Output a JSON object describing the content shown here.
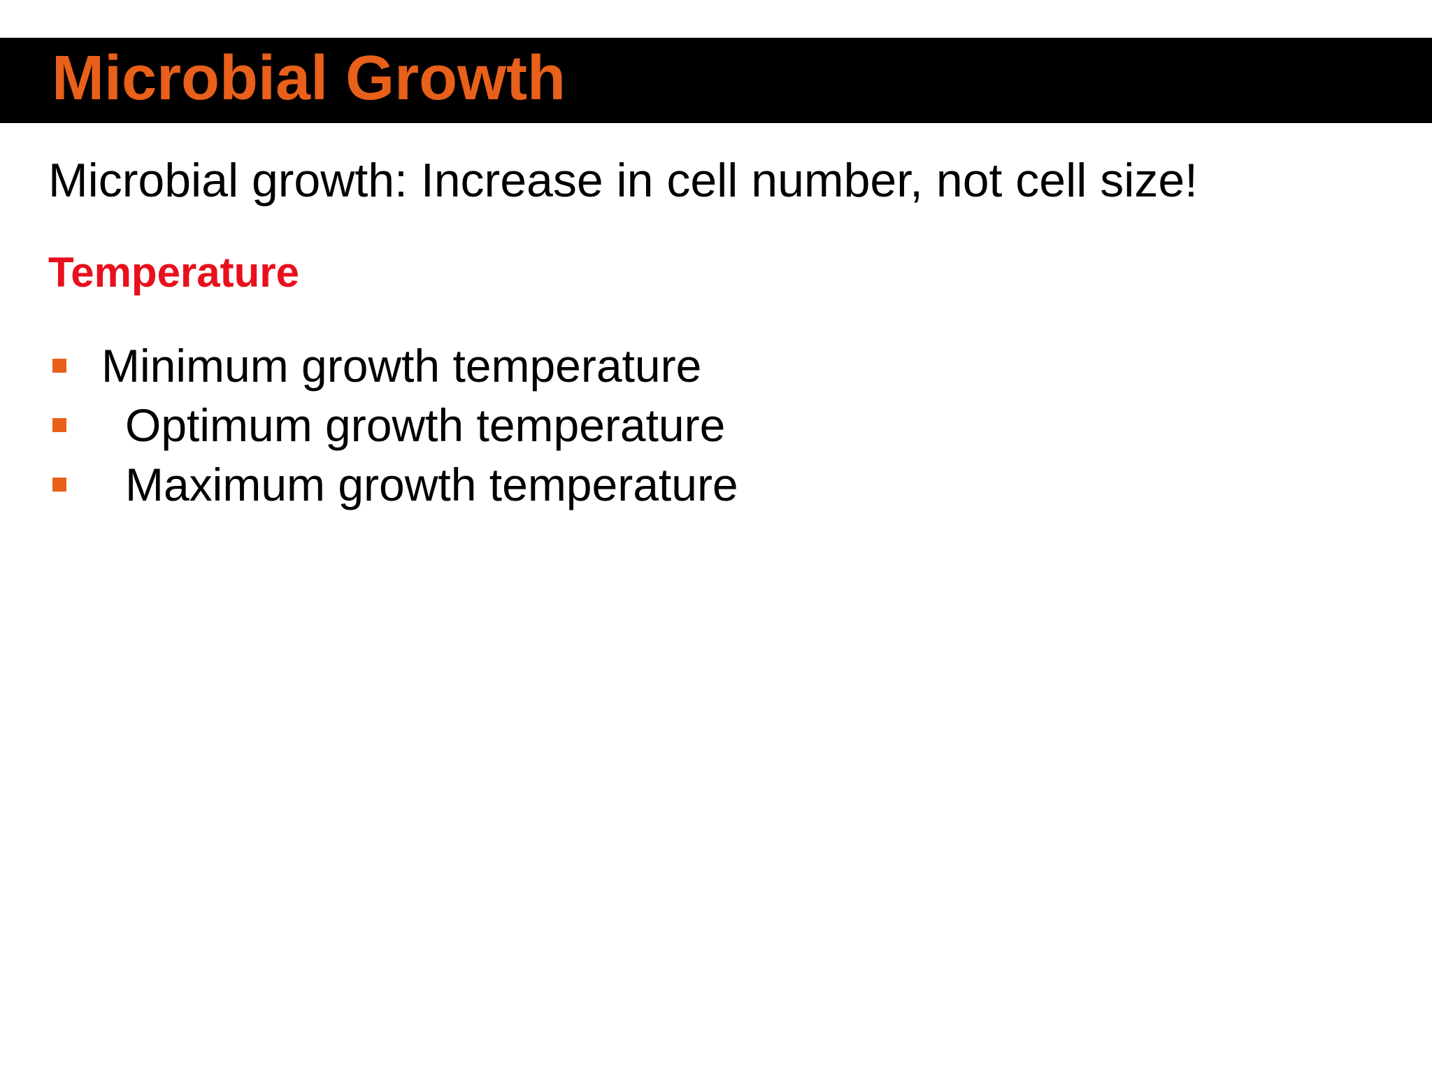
{
  "slide": {
    "title": "Microbial Growth",
    "intro": "Microbial growth:  Increase in cell number, not cell size!",
    "section_heading": "Temperature",
    "bullets": [
      "Minimum growth temperature",
      "Optimum growth temperature",
      "Maximum growth temperature"
    ]
  },
  "colors": {
    "title_bar_background": "#000000",
    "title_text": "#e8601a",
    "section_heading_text": "#e8101c",
    "bullet_marker": "#e8601a",
    "body_text": "#000000"
  },
  "icons": {
    "bullet": "square-bullet-icon"
  }
}
